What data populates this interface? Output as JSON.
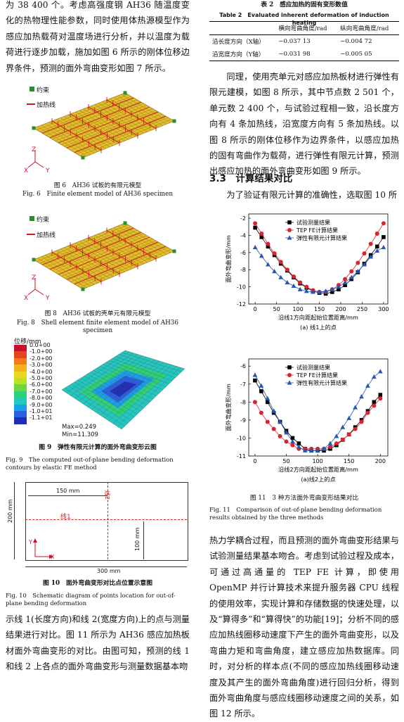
{
  "left_column": {
    "para1": "为 38 400 个。考虑高强度钢 AH36 随温度变化的热物理性能参数，同时使用体热源模型作为感应加热载荷对温度场进行分析，并以温度为载荷进行逐步加载，施加如图 6 所示的刚体位移边界条件，预测的面外弯曲变形如图 7 所示。",
    "fig6": {
      "legend_constraint": "约束",
      "legend_heating_line": "加热线",
      "axis_z": "Z",
      "axis_x": "X",
      "axis_y": "Y",
      "caption_cn": "图 6　AH36 试板的有限元模型",
      "caption_en": "Fig. 6　Finite element model of AH36 specimen"
    },
    "fig8": {
      "legend_constraint": "约束",
      "legend_heating_line": "加热线",
      "axis_z": "Z",
      "axis_x": "X",
      "axis_y": "Y",
      "caption_cn": "图 8　AH36 试板的壳单元有限元模型",
      "caption_en": "Fig. 8　Shell element finite element model of AH36 specimen"
    },
    "fig9": {
      "legend_title": "位移/mm",
      "legend_values": [
        "0.0+00",
        "-1.0+00",
        "-2.0+00",
        "-3.0+00",
        "-4.0+00",
        "-5.0+00",
        "-6.0+00",
        "-7.0+00",
        "-8.0+00",
        "-9.0+00",
        "-1.0+01",
        "-1.1+01"
      ],
      "legend_colors": [
        "#c8102e",
        "#e8431c",
        "#f07a1c",
        "#f5b21b",
        "#e9d81e",
        "#b9e31f",
        "#6fd63c",
        "#2ed17a",
        "#22c7c0",
        "#1aa0e6",
        "#2a5fe0",
        "#1f2db8"
      ],
      "max_label": "Max=0.249",
      "min_label": "Min=11.309",
      "caption_cn": "图 9　弹性有限元计算的面外弯曲变形云图",
      "caption_en": "Fig. 9　The computed out-of-plane bending deformation contours by elastic FE method"
    },
    "fig10": {
      "dim_150": "150 mm",
      "dim_200": "200 mm",
      "dim_100": "100 mm",
      "dim_300": "300 mm",
      "line1": "线1",
      "line2": "线2",
      "axis_x": "X",
      "axis_y": "Y",
      "caption_cn": "图 10　面外弯曲变形对比点位置示意图",
      "caption_en": "Fig. 10　Schematic diagram of points location for out-of-plane bending deformation"
    },
    "para2": "示线 1(长度方向)和线 2(宽度方向)上的点与测量结果进行对比。图 11 所示为 AH36 感应加热板材面外弯曲变形的对比。由图可知，预测的线 1 和线 2 上各点的面外弯曲变形与测量数据基本吻"
  },
  "right_column": {
    "table2": {
      "title_cn": "表 2　感应加热的固有变形数值",
      "title_en": "Table 2　Evaluated inherent deformation of induction heating",
      "headers": [
        "",
        "横向弯曲角度/rad",
        "纵向弯曲角度/rad"
      ],
      "rows": [
        [
          "沿长度方向（X轴）",
          "−0.037 13",
          "−0.004 72"
        ],
        [
          "沿宽度方向（Y轴）",
          "−0.031 98",
          "−0.005 05"
        ]
      ]
    },
    "para1": "同理，使用壳单元对感应加热板材进行弹性有限元建模，如图 8 所示，其中节点数 2 501 个，单元数 2 400 个，与试验过程相一致，沿长度方向有 4 条加热线，沿宽度方向有 5 条加热线。以图 8 所示的刚体位移作为边界条件，以感应加热的固有弯曲作为载荷，进行弹性有限元计算，预测出感应加热的面外弯曲变形如图 9 所示。",
    "section_title": "3.3　计算结果对比",
    "para2": "为了验证有限元计算的准确性，选取图 10 所",
    "fig11": {
      "caption_cn": "图 11　3 种方法面外弯曲变形结果对比",
      "caption_en": "Fig. 11　Comparison of out-of-plane bending deformation results obtained by the three methods"
    },
    "para3": "热力学耦合过程，而且预测的面外弯曲变形结果与试验测量结果基本吻合。考虑到试验过程及成本，可通过高通量的 TEP FE 计算，即使用 OpenMP 并行计算技术来提升服务器 CPU 线程的使用效率，实现计算和存储数据的快速处理，以及“算得多”和“算得快”的功能[19]；分析不同的感应加热线圈移动速度下产生的面外弯曲变形，以及弯曲力矩和弯曲角度，建立感应加热数据库。同时，对分析的样本点(不同的感应加热线圈移动速度及其产生的面外弯曲角度)进行回归分析，得到面外弯曲角度与感应线圈移动速度之间的关系，如图 12 所示。"
  },
  "chart_data": [
    {
      "type": "line",
      "subplot_caption": "(a) 线1上的点",
      "xlabel": "沿线1方向距起始位置距离/mm",
      "ylabel": "面外弯曲变形/mm",
      "xlim": [
        -15,
        310
      ],
      "ylim": [
        -12,
        -1.5
      ],
      "xticks": [
        0,
        50,
        100,
        150,
        200,
        250,
        300
      ],
      "yticks": [
        -2,
        -4,
        -6,
        -8,
        -10,
        -12
      ],
      "legend_position": "top-center",
      "series": [
        {
          "name": "试验测量结果",
          "marker": "square",
          "color": "#000000",
          "x": [
            0,
            15,
            30,
            45,
            60,
            75,
            90,
            105,
            120,
            135,
            150,
            165,
            180,
            195,
            210,
            225,
            240,
            255,
            270,
            285,
            300
          ],
          "y": [
            -3.1,
            -4.2,
            -5.3,
            -6.3,
            -7.3,
            -8.1,
            -8.9,
            -9.6,
            -10.1,
            -10.5,
            -10.7,
            -10.8,
            -10.6,
            -10.3,
            -9.8,
            -9.1,
            -8.3,
            -7.3,
            -6.3,
            -5.3,
            -4.2
          ]
        },
        {
          "name": "TEP FE计算结果",
          "marker": "circle",
          "color": "#d7262b",
          "x": [
            0,
            15,
            30,
            45,
            60,
            75,
            90,
            105,
            120,
            135,
            150,
            165,
            180,
            195,
            210,
            225,
            240,
            255,
            270,
            285,
            300
          ],
          "y": [
            -2.6,
            -3.8,
            -5.0,
            -6.1,
            -7.1,
            -8.0,
            -8.8,
            -9.5,
            -10.0,
            -10.4,
            -10.6,
            -10.6,
            -10.3,
            -9.8,
            -9.1,
            -8.2,
            -7.2,
            -6.1,
            -5.0,
            -3.8,
            -2.6
          ]
        },
        {
          "name": "弹性有限元计算结果",
          "marker": "triangle",
          "color": "#2357b0",
          "x": [
            0,
            15,
            30,
            45,
            60,
            75,
            90,
            105,
            120,
            135,
            150,
            165,
            180,
            195,
            210,
            225,
            240,
            255,
            270,
            285,
            300
          ],
          "y": [
            -5.4,
            -6.4,
            -7.4,
            -8.2,
            -8.9,
            -9.5,
            -9.9,
            -10.3,
            -10.5,
            -10.6,
            -10.6,
            -10.5,
            -10.3,
            -10.0,
            -9.5,
            -8.9,
            -8.2,
            -7.4,
            -6.5,
            -5.8,
            -5.4
          ]
        }
      ]
    },
    {
      "type": "line",
      "subplot_caption": "(a)线2上的点",
      "xlabel": "沿线2方向距起始位置距离/mm",
      "ylabel": "面外弯曲变形/mm",
      "xlim": [
        -10,
        212
      ],
      "ylim": [
        -11,
        -5.6
      ],
      "xticks": [
        0,
        50,
        100,
        150,
        200
      ],
      "yticks": [
        -6,
        -7,
        -8,
        -9,
        -10,
        -11
      ],
      "legend_position": "top-center",
      "series": [
        {
          "name": "试验测量结果",
          "marker": "square",
          "color": "#000000",
          "x": [
            0,
            10,
            20,
            30,
            40,
            50,
            60,
            70,
            80,
            90,
            100,
            110,
            120,
            130,
            140,
            150,
            160,
            170,
            180,
            190,
            200
          ],
          "y": [
            -6.8,
            -7.4,
            -8.0,
            -8.6,
            -9.1,
            -9.6,
            -10.0,
            -10.3,
            -10.6,
            -10.7,
            -10.7,
            -10.7,
            -10.6,
            -10.4,
            -10.1,
            -9.8,
            -9.4,
            -9.0,
            -8.5,
            -8.0,
            -7.6
          ]
        },
        {
          "name": "TEP FE计算结果",
          "marker": "circle",
          "color": "#d7262b",
          "x": [
            0,
            10,
            20,
            30,
            40,
            50,
            60,
            70,
            80,
            90,
            100,
            110,
            120,
            130,
            140,
            150,
            160,
            170,
            180,
            190,
            200
          ],
          "y": [
            -8.0,
            -8.6,
            -9.1,
            -9.5,
            -9.9,
            -10.2,
            -10.4,
            -10.6,
            -10.6,
            -10.6,
            -10.6,
            -10.6,
            -10.5,
            -10.3,
            -10.1,
            -9.8,
            -9.5,
            -9.1,
            -8.6,
            -8.2,
            -7.8
          ]
        },
        {
          "name": "弹性有限元计算结果",
          "marker": "triangle",
          "color": "#2357b0",
          "x": [
            0,
            10,
            20,
            30,
            40,
            50,
            60,
            70,
            80,
            90,
            100,
            110,
            120,
            130,
            140,
            150,
            160,
            170,
            180,
            190,
            200
          ],
          "y": [
            -6.5,
            -7.1,
            -7.8,
            -8.5,
            -9.1,
            -9.7,
            -10.2,
            -10.5,
            -10.7,
            -10.7,
            -10.7,
            -10.6,
            -10.3,
            -9.9,
            -9.4,
            -8.9,
            -8.3,
            -7.7,
            -7.1,
            -6.6,
            -6.3
          ]
        }
      ]
    }
  ]
}
